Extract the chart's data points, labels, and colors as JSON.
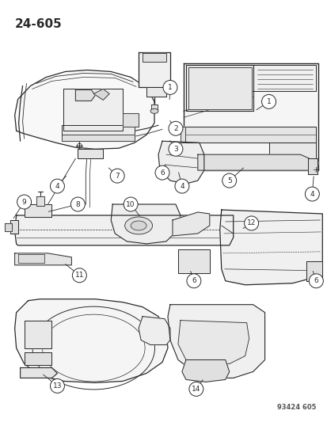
{
  "title": "24-605",
  "part_number": "93424 605",
  "bg": "#f5f5f0",
  "lc": "#2a2a2a",
  "fig_w": 4.14,
  "fig_h": 5.33,
  "dpi": 100,
  "title_fs": 11,
  "callout_fs": 6.5,
  "pn_fs": 6
}
